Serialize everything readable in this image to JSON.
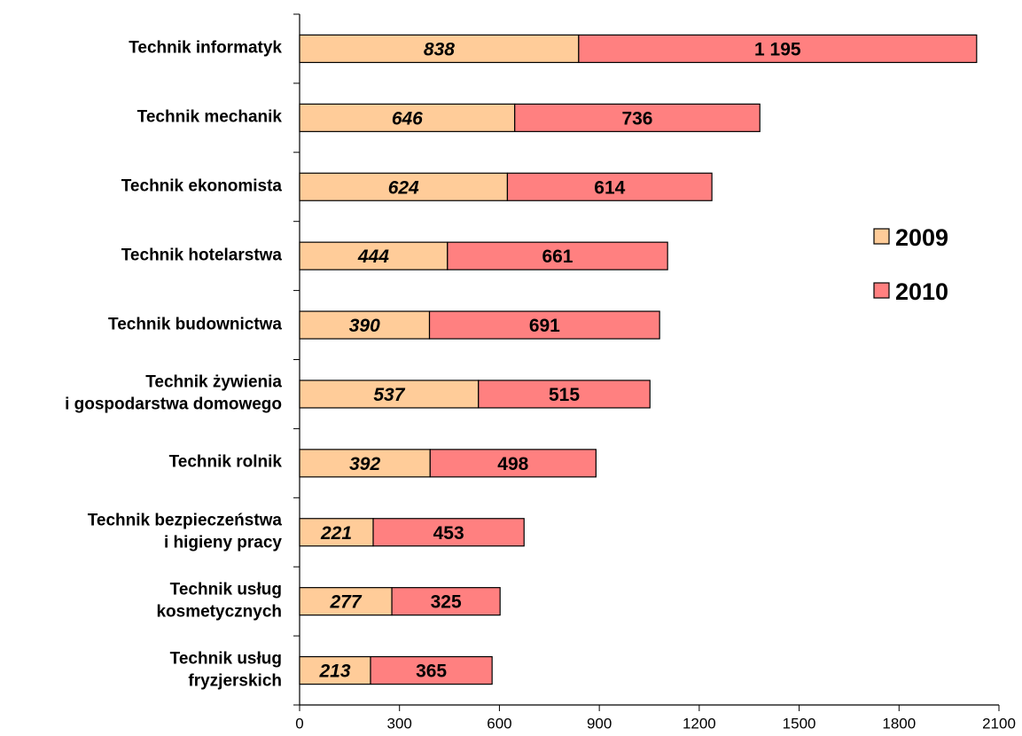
{
  "chart_data": {
    "type": "bar",
    "orientation": "horizontal",
    "stacked": true,
    "categories": [
      "Technik informatyk",
      "Technik mechanik",
      "Technik ekonomista",
      "Technik hotelarstwa",
      "Technik budownictwa",
      "Technik żywienia\ni gospodarstwa domowego",
      "Technik rolnik",
      "Technik bezpieczeństwa\ni higieny pracy",
      "Technik usług\nkosmetycznych",
      "Technik usług\nfryzjerskich"
    ],
    "series": [
      {
        "name": "2009",
        "color": "#ffcc99",
        "values": [
          838,
          646,
          624,
          444,
          390,
          537,
          392,
          221,
          277,
          213
        ]
      },
      {
        "name": "2010",
        "color": "#ff8080",
        "values": [
          1195,
          736,
          614,
          661,
          691,
          515,
          498,
          453,
          325,
          365
        ],
        "value_labels": [
          "1 195",
          "736",
          "614",
          "661",
          "691",
          "515",
          "498",
          "453",
          "325",
          "365"
        ]
      }
    ],
    "xlim": [
      0,
      2100
    ],
    "xticks": [
      0,
      300,
      600,
      900,
      1200,
      1500,
      1800,
      2100
    ],
    "grid": false,
    "legend": "right"
  }
}
